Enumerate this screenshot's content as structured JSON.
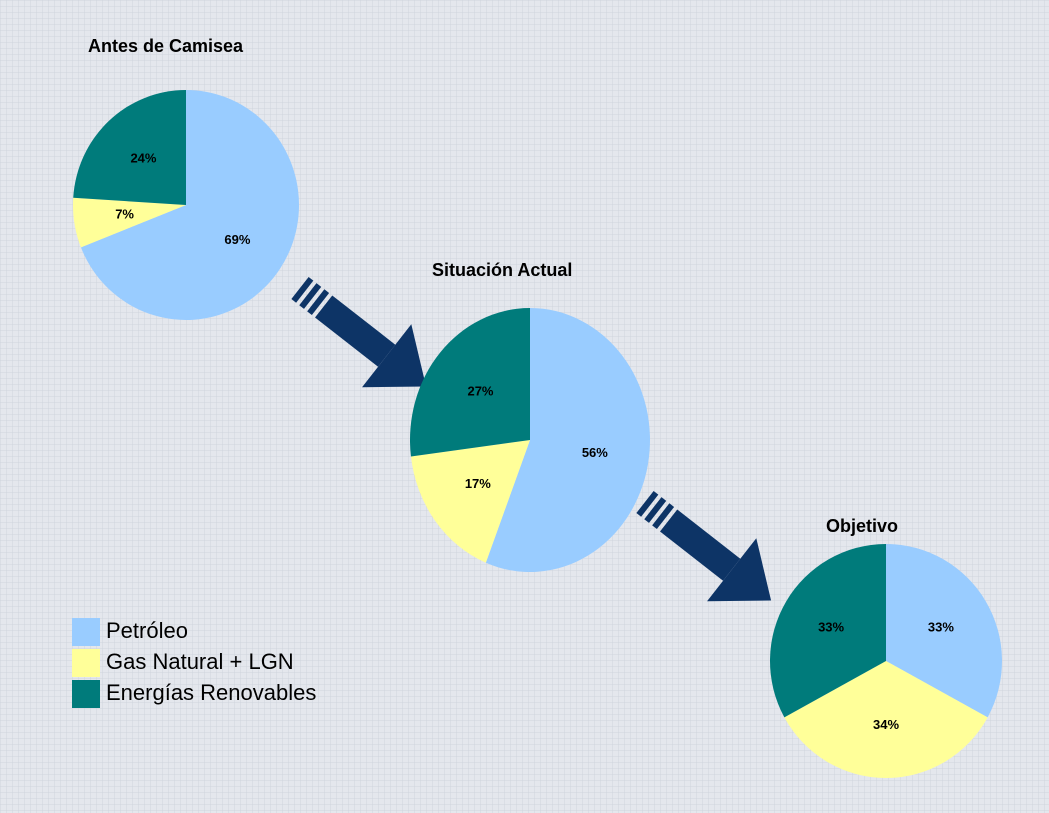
{
  "chart_data": [
    {
      "type": "pie",
      "title": "Antes de Camisea",
      "categories": [
        "Petróleo",
        "Gas Natural + LGN",
        "Energías Renovables"
      ],
      "values": [
        69,
        7,
        24
      ],
      "value_labels": [
        "69%",
        "7%",
        "24%"
      ],
      "colors": [
        "#99ccff",
        "#ffff99",
        "#007b7b"
      ]
    },
    {
      "type": "pie",
      "title": "Situación Actual",
      "categories": [
        "Petróleo",
        "Gas Natural + LGN",
        "Energías Renovables"
      ],
      "values": [
        56,
        17,
        27
      ],
      "value_labels": [
        "56%",
        "17%",
        "27%"
      ],
      "colors": [
        "#99ccff",
        "#ffff99",
        "#007b7b"
      ]
    },
    {
      "type": "pie",
      "title": "Objetivo",
      "categories": [
        "Petróleo",
        "Gas Natural + LGN",
        "Energías Renovables"
      ],
      "values": [
        33,
        34,
        33
      ],
      "value_labels": [
        "33%",
        "34%",
        "33%"
      ],
      "colors": [
        "#99ccff",
        "#ffff99",
        "#007b7b"
      ]
    }
  ]
}
